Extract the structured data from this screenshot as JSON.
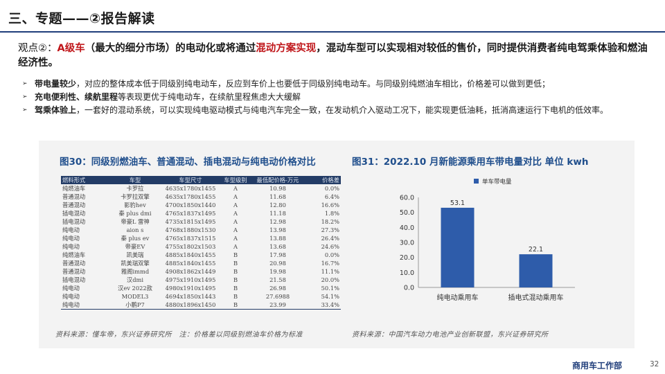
{
  "header": {
    "title": "三、专题——②报告解读"
  },
  "viewpoint": {
    "lead": "观点②：",
    "red1": "A级车",
    "text1": "（最大的细分市场）的电动化或将通过",
    "red2": "混动方案实现",
    "text2": "，混动车型可以实现相对较低的售价，同时提供消费者纯电驾乘体验和燃油经济性。"
  },
  "bullets": [
    {
      "keyword": "带电量较少",
      "text": "，对应的整体成本低于同级别纯电动车，反应到车价上也要低于同级别纯电动车。与同级别纯燃油车相比，价格差可以做到更低；"
    },
    {
      "keyword": "充电便利性、续航里程",
      "text": "等表现更优于纯电动车，在续航里程焦虑大大缓解"
    },
    {
      "keyword": "驾乘体验上",
      "text": "，一套好的混动系统，可以实现纯电驱动模式与纯电汽车完全一致，在发动机介入驱动工况下，能实现更低油耗，抵消高速运行下电机的低效率。"
    }
  ],
  "figure30": {
    "title": "图30：同级别燃油车、普通混动、插电混动与纯电动价格对比",
    "headers": [
      "燃料形式",
      "车型",
      "车型尺寸",
      "车型级别",
      "最低配价格-万元",
      "价格差"
    ],
    "rows": [
      [
        "纯燃油车",
        "卡罗拉",
        "4635x1780x1455",
        "A",
        "10.98",
        "0.0%"
      ],
      [
        "普通混动",
        "卡罗拉双擎",
        "4635x1780x1455",
        "A",
        "11.68",
        "6.4%"
      ],
      [
        "普通混动",
        "影豹hev",
        "4700x1850x1440",
        "A",
        "12.80",
        "16.6%"
      ],
      [
        "插电混动",
        "秦 plus dmi",
        "4765x1837x1495",
        "A",
        "11.18",
        "1.8%"
      ],
      [
        "插电混动",
        "帝豪L 雷神",
        "4735x1815x1495",
        "A",
        "12.98",
        "18.2%"
      ],
      [
        "纯电动",
        "aion s",
        "4768x1880x1530",
        "A",
        "13.98",
        "27.3%"
      ],
      [
        "纯电动",
        "秦 plus ev",
        "4765x1837x1515",
        "A",
        "13.88",
        "26.4%"
      ],
      [
        "纯电动",
        "帝豪EV",
        "4755x1802x1503",
        "A",
        "13.68",
        "24.6%"
      ],
      [
        "纯燃油车",
        "凯美瑞",
        "4885x1840x1455",
        "B",
        "17.98",
        "0.0%"
      ],
      [
        "普通混动",
        "凯美瑞双擎",
        "4885x1840x1455",
        "B",
        "20.98",
        "16.7%"
      ],
      [
        "普通混动",
        "雅阁immd",
        "4908x1862x1449",
        "B",
        "19.98",
        "11.1%"
      ],
      [
        "插电混动",
        "汉dmi",
        "4975x1910x1495",
        "B",
        "21.58",
        "20.0%"
      ],
      [
        "纯电动",
        "汉ev 2022款",
        "4980x1910x1495",
        "B",
        "26.98",
        "50.1%"
      ],
      [
        "纯电动",
        "MODEL3",
        "4694x1850x1443",
        "B",
        "27.6988",
        "54.1%"
      ],
      [
        "纯电动",
        "小鹏P7",
        "4880x1896x1450",
        "B",
        "23.99",
        "33.4%"
      ]
    ],
    "source": "资料来源：懂车帝，东兴证券研究所　注：价格差以同级别燃油车价格为标准"
  },
  "figure31": {
    "title": "图31：2022.10 月新能源乘用车带电量对比 单位 kwh",
    "source": "资料来源：中国汽车动力电池产业创新联盟，东兴证券研究所"
  },
  "chart_data": {
    "type": "bar",
    "categories": [
      "纯电动乘用车",
      "插电式混动乘用车"
    ],
    "series": [
      {
        "name": "单车带电量",
        "values": [
          53.1,
          22.1
        ]
      }
    ],
    "data_labels": [
      "53.1",
      "22.1"
    ],
    "y_ticks": [
      "0.0",
      "10.0",
      "20.0",
      "30.0",
      "40.0",
      "50.0",
      "60.0"
    ],
    "ylim": [
      0,
      60
    ],
    "grid": false,
    "legend": "top-left",
    "bar_color": "#2e5caa"
  },
  "footer": {
    "department": "商用车工作部",
    "page": "32"
  }
}
